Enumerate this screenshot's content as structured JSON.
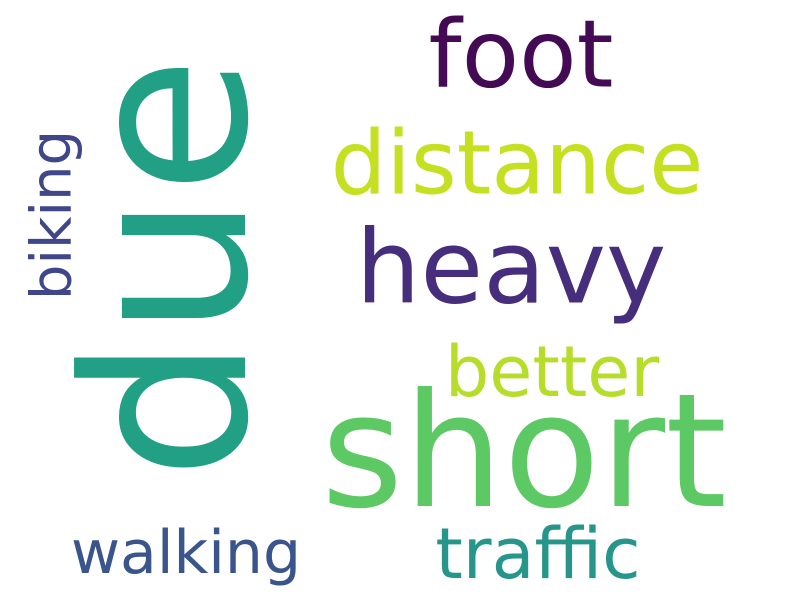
{
  "words": [
    {
      "text": "due",
      "color": "#21a085"
    },
    {
      "text": "short",
      "color": "#5dc964"
    },
    {
      "text": "heavy",
      "color": "#472e7c"
    },
    {
      "text": "foot",
      "color": "#440b54"
    },
    {
      "text": "distance",
      "color": "#c5e021"
    },
    {
      "text": "better",
      "color": "#b6dd2a"
    },
    {
      "text": "traffic",
      "color": "#26968b"
    },
    {
      "text": "walking",
      "color": "#3a548c"
    },
    {
      "text": "biking",
      "color": "#3f4788"
    }
  ]
}
